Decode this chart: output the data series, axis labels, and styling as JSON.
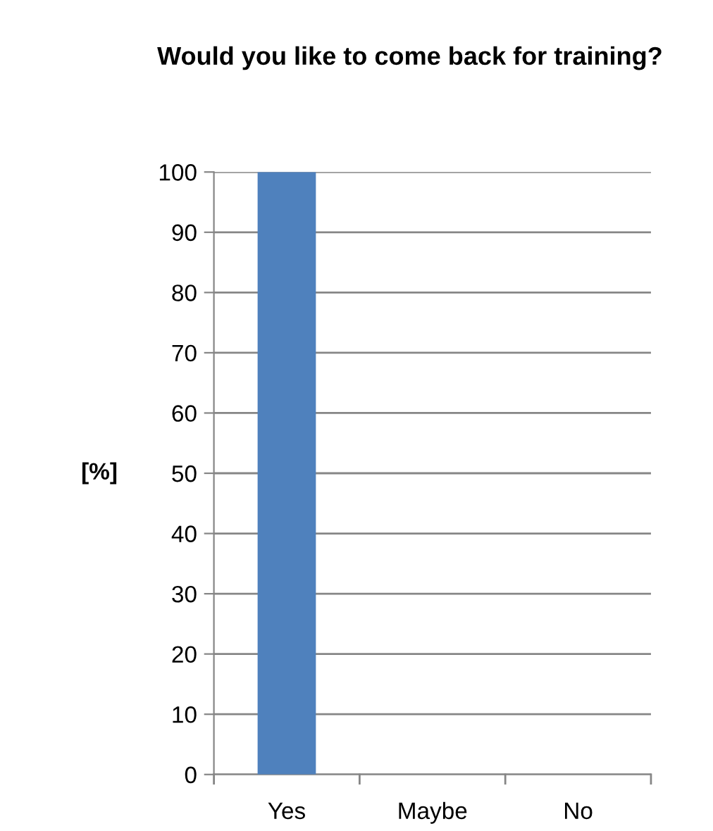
{
  "chart_data": {
    "type": "bar",
    "title": "Would you like to come back for training?",
    "ylabel": "[%]",
    "categories": [
      "Yes",
      "Maybe",
      "No"
    ],
    "values": [
      100,
      0,
      0
    ],
    "color": "#4f81bd",
    "ylim": [
      0,
      100
    ],
    "yticks": [
      0,
      10,
      20,
      30,
      40,
      50,
      60,
      70,
      80,
      90,
      100
    ],
    "grid": "y",
    "legend": false
  }
}
